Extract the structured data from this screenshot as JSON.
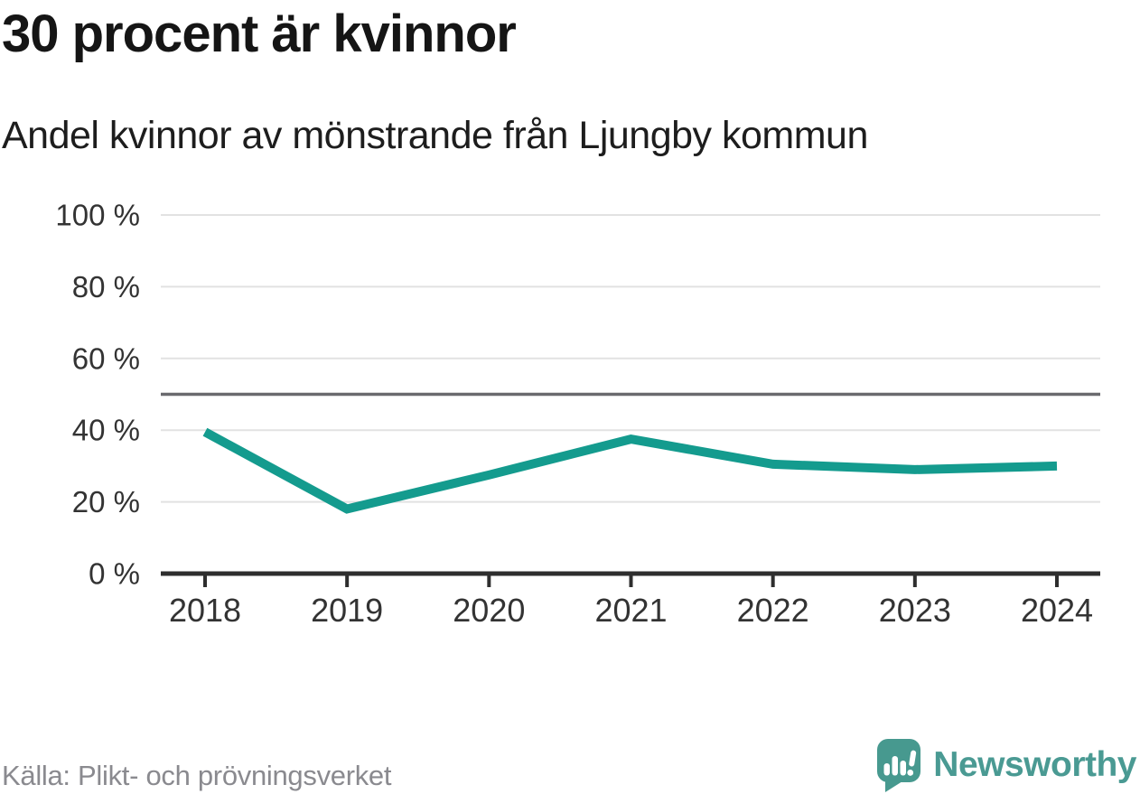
{
  "title": "30 procent är kvinnor",
  "subtitle": "Andel kvinnor av mönstrande från Ljungby kommun",
  "source": "Källa: Plikt- och prövningsverket",
  "brand": {
    "name": "Newsworthy",
    "color": "#4a9a93"
  },
  "chart_data": {
    "type": "line",
    "title": "30 procent är kvinnor",
    "subtitle": "Andel kvinnor av mönstrande från Ljungby kommun",
    "x": [
      2018,
      2019,
      2020,
      2021,
      2022,
      2023,
      2024
    ],
    "series": [
      {
        "name": "Andel kvinnor av mönstrande",
        "values": [
          39.5,
          18,
          27.5,
          37.5,
          30.5,
          29,
          30
        ]
      }
    ],
    "unit": "%",
    "ylim": [
      0,
      100
    ],
    "yticks": [
      0,
      20,
      40,
      60,
      80,
      100
    ],
    "ytick_format": "{v} %",
    "reference_line": {
      "value": 50
    },
    "grid": true,
    "legend_position": "none",
    "line_color": "#149b8e",
    "grid_color": "#e2e2e2",
    "reference_line_color": "#6a6a6e",
    "axis_color": "#2e2e2e",
    "tick_label_color": "#333333"
  }
}
